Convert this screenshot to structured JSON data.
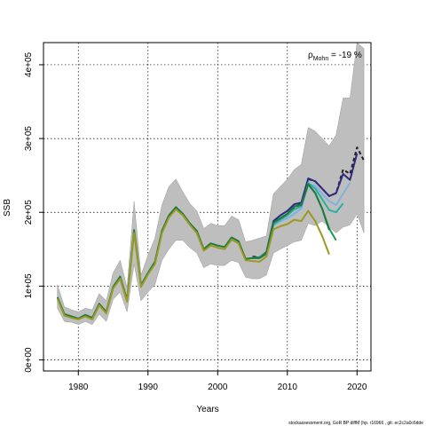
{
  "chart_data": {
    "type": "line",
    "xlabel": "Years",
    "ylabel": "SSB",
    "xlim": [
      1975,
      2022
    ],
    "ylim": [
      -15000,
      430000
    ],
    "x_ticks": [
      1980,
      1990,
      2000,
      2010,
      2020
    ],
    "x_tick_labels": [
      "1980",
      "1990",
      "2000",
      "2010",
      "2020"
    ],
    "y_ticks": [
      0,
      100000,
      200000,
      300000,
      400000
    ],
    "y_tick_labels": [
      "0e+00",
      "1e+05",
      "2e+05",
      "3e+05",
      "4e+05"
    ],
    "grid": true,
    "annotation": {
      "rho_label": "ρ",
      "rho_sub": "Mohn",
      "rho_value": " = -19 %"
    },
    "footer": "stockassessment.org, GoR BP diffM (hp. r16966 , git: ec2c2a0c6dde",
    "band": {
      "x": [
        1977,
        1978,
        1979,
        1980,
        1981,
        1982,
        1983,
        1984,
        1985,
        1986,
        1987,
        1988,
        1989,
        1990,
        1991,
        1992,
        1993,
        1994,
        1995,
        1996,
        1997,
        1998,
        1999,
        2000,
        2001,
        2002,
        2003,
        2004,
        2005,
        2006,
        2007,
        2008,
        2009,
        2010,
        2011,
        2012,
        2013,
        2014,
        2015,
        2016,
        2017,
        2018,
        2019,
        2020,
        2021
      ],
      "lower": [
        70000,
        52000,
        51000,
        48000,
        52000,
        48000,
        62000,
        52000,
        82000,
        92000,
        65000,
        130000,
        80000,
        92000,
        102000,
        135000,
        150000,
        162000,
        162000,
        152000,
        145000,
        125000,
        130000,
        128000,
        128000,
        135000,
        132000,
        112000,
        110000,
        110000,
        115000,
        145000,
        150000,
        155000,
        160000,
        162000,
        185000,
        182000,
        188000,
        180000,
        172000,
        180000,
        183000,
        198000,
        172000
      ],
      "upper": [
        102000,
        72000,
        68000,
        65000,
        70000,
        68000,
        90000,
        80000,
        118000,
        135000,
        98000,
        215000,
        115000,
        142000,
        165000,
        210000,
        235000,
        245000,
        228000,
        212000,
        202000,
        178000,
        185000,
        182000,
        182000,
        195000,
        190000,
        160000,
        162000,
        165000,
        168000,
        225000,
        235000,
        245000,
        258000,
        265000,
        315000,
        310000,
        300000,
        290000,
        305000,
        355000,
        355000,
        430000,
        422000
      ]
    },
    "series": [
      {
        "color": "#222222",
        "dash": "4,3",
        "x": [
          2005,
          2006,
          2007,
          2008,
          2009,
          2010,
          2011,
          2012,
          2013,
          2014,
          2015,
          2016,
          2017,
          2018,
          2019,
          2020,
          2021
        ],
        "values": [
          140000,
          139000,
          145000,
          185000,
          192000,
          198000,
          206000,
          212000,
          245000,
          242000,
          232000,
          222000,
          226000,
          258000,
          252000,
          288000,
          270000
        ]
      },
      {
        "color": "#2e2a80",
        "dash": "",
        "x": [
          2005,
          2006,
          2007,
          2008,
          2009,
          2010,
          2011,
          2012,
          2013,
          2014,
          2015,
          2016,
          2017,
          2018,
          2019,
          2020
        ],
        "values": [
          139000,
          139000,
          146000,
          188000,
          196000,
          202000,
          211000,
          213000,
          246000,
          242000,
          232000,
          222000,
          226000,
          252000,
          244000,
          280000
        ]
      },
      {
        "color": "#7fb3df",
        "dash": "",
        "x": [
          2005,
          2006,
          2007,
          2008,
          2009,
          2010,
          2011,
          2012,
          2013,
          2014,
          2015,
          2016,
          2017,
          2018,
          2019
        ],
        "values": [
          138000,
          138000,
          144000,
          182000,
          188000,
          192000,
          198000,
          205000,
          238000,
          236000,
          225000,
          215000,
          210000,
          225000,
          240000
        ]
      },
      {
        "color": "#2ab0a0",
        "dash": "",
        "x": [
          2005,
          2006,
          2007,
          2008,
          2009,
          2010,
          2011,
          2012,
          2013,
          2014,
          2015,
          2016,
          2017,
          2018
        ],
        "values": [
          138000,
          138000,
          144000,
          184000,
          190000,
          196000,
          204000,
          208000,
          240000,
          232000,
          218000,
          203000,
          200000,
          212000
        ]
      },
      {
        "color": "#1f9a55",
        "dash": "",
        "x": [
          2005,
          2006,
          2007,
          2008,
          2009,
          2010,
          2011,
          2012,
          2013,
          2014,
          2015,
          2016,
          2017
        ],
        "values": [
          138000,
          139000,
          145000,
          186000,
          192000,
          198000,
          208000,
          210000,
          238000,
          226000,
          205000,
          178000,
          162000
        ]
      },
      {
        "color": "#1e7a3e",
        "dash": "",
        "x": [
          1977,
          1978,
          1979,
          1980,
          1981,
          1982,
          1983,
          1984,
          1985,
          1986,
          1987,
          1988,
          1989,
          1990,
          1991,
          1992,
          1993,
          1994,
          1995,
          1996,
          1997,
          1998,
          1999,
          2000,
          2001,
          2002,
          2003,
          2004,
          2005,
          2006,
          2007,
          2008,
          2009,
          2010,
          2011,
          2012,
          2013,
          2014,
          2015,
          2016
        ],
        "values": [
          85000,
          62000,
          59000,
          56000,
          61000,
          57000,
          76000,
          65000,
          99000,
          113000,
          81000,
          176000,
          101000,
          118000,
          133000,
          175000,
          196000,
          207000,
          198000,
          185000,
          175000,
          150000,
          158000,
          155000,
          153000,
          166000,
          161000,
          137000,
          138000,
          138000,
          144000,
          186000,
          192000,
          198000,
          208000,
          210000,
          238000,
          226000,
          205000,
          176000
        ]
      },
      {
        "color": "#9a9a22",
        "dash": "",
        "x": [
          1977,
          1978,
          1979,
          1980,
          1981,
          1982,
          1983,
          1984,
          1985,
          1986,
          1987,
          1988,
          1989,
          1990,
          1991,
          1992,
          1993,
          1994,
          1995,
          1996,
          1997,
          1998,
          1999,
          2000,
          2001,
          2002,
          2003,
          2004,
          2005,
          2006,
          2007,
          2008,
          2009,
          2010,
          2011,
          2012,
          2013,
          2014,
          2015,
          2016
        ],
        "values": [
          83000,
          60000,
          57000,
          55000,
          59000,
          55000,
          74000,
          63000,
          97000,
          110000,
          79000,
          172000,
          99000,
          116000,
          130000,
          172000,
          193000,
          204000,
          196000,
          183000,
          172000,
          148000,
          155000,
          152000,
          150000,
          163000,
          158000,
          135000,
          134000,
          133000,
          140000,
          177000,
          181000,
          184000,
          190000,
          188000,
          202000,
          188000,
          168000,
          143000
        ]
      }
    ]
  }
}
